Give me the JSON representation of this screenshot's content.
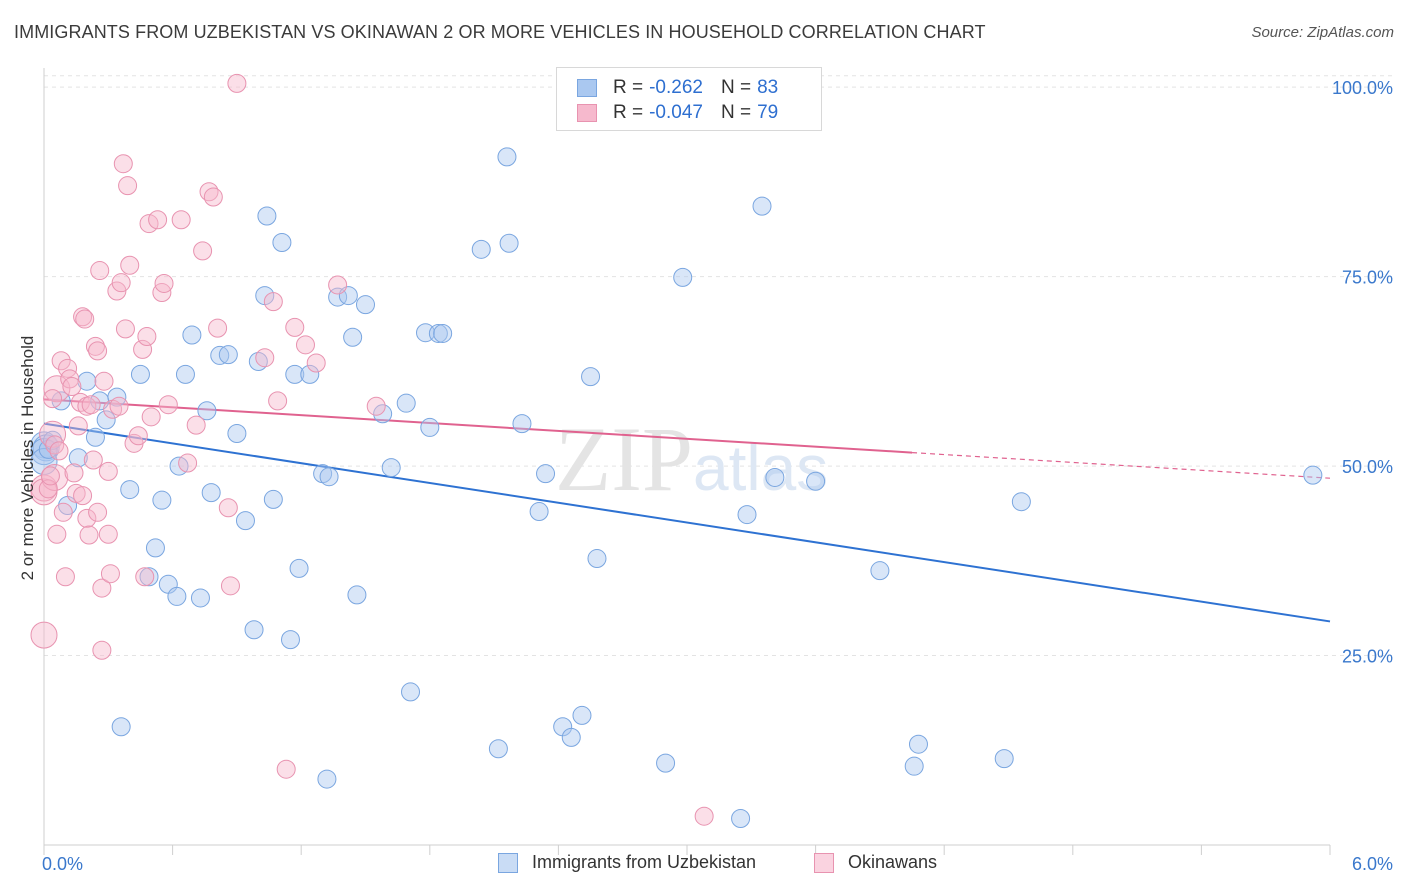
{
  "title": "IMMIGRANTS FROM UZBEKISTAN VS OKINAWAN 2 OR MORE VEHICLES IN HOUSEHOLD CORRELATION CHART",
  "source": "Source: ZipAtlas.com",
  "watermark": "ZIPatlas",
  "colors": {
    "blue_fill": "#aac8f0",
    "blue_stroke": "#7aa6e0",
    "blue_line": "#2e72d2",
    "pink_fill": "#f6b9cd",
    "pink_stroke": "#e893b0",
    "pink_line": "#e0628f",
    "axis_text": "#3a78cc"
  },
  "legend": {
    "r_label": "R =",
    "n_label": "N =",
    "rows": [
      {
        "r": "-0.262",
        "n": "83"
      },
      {
        "r": "-0.047",
        "n": "79"
      }
    ]
  },
  "chart_data": {
    "type": "scatter",
    "title": "IMMIGRANTS FROM UZBEKISTAN VS OKINAWAN 2 OR MORE VEHICLES IN HOUSEHOLD CORRELATION CHART",
    "xlabel": "",
    "ylabel": "2 or more Vehicles in Household",
    "xlim": [
      0,
      6
    ],
    "ylim": [
      0,
      102
    ],
    "x_tick_labels": [
      "0.0%",
      "6.0%"
    ],
    "y_ticks": [
      25,
      50,
      75,
      100
    ],
    "y_tick_labels": [
      "25.0%",
      "50.0%",
      "75.0%",
      "100.0%"
    ],
    "series": [
      {
        "name": "Immigrants from Uzbekistan",
        "color": "blue",
        "trend": {
          "x0": 0.0,
          "y0": 55.6,
          "x1": 6.0,
          "y1": 29.5,
          "dashed_from": null
        },
        "points": [
          [
            0.02,
            52.2
          ],
          [
            0.04,
            53.4
          ],
          [
            0.08,
            58.6
          ],
          [
            0.11,
            44.8
          ],
          [
            0.16,
            51.1
          ],
          [
            0.2,
            61.2
          ],
          [
            0.24,
            53.8
          ],
          [
            0.26,
            58.6
          ],
          [
            0.29,
            56.1
          ],
          [
            0.34,
            59.1
          ],
          [
            0.36,
            15.6
          ],
          [
            0.4,
            46.9
          ],
          [
            0.45,
            62.1
          ],
          [
            0.49,
            35.4
          ],
          [
            0.52,
            39.2
          ],
          [
            0.55,
            45.5
          ],
          [
            0.58,
            34.4
          ],
          [
            0.62,
            32.8
          ],
          [
            0.63,
            50.0
          ],
          [
            0.66,
            62.1
          ],
          [
            0.69,
            67.3
          ],
          [
            0.73,
            32.6
          ],
          [
            0.76,
            57.3
          ],
          [
            0.78,
            46.5
          ],
          [
            0.82,
            64.6
          ],
          [
            0.86,
            64.7
          ],
          [
            0.9,
            54.3
          ],
          [
            0.94,
            42.8
          ],
          [
            0.98,
            28.4
          ],
          [
            1.0,
            63.8
          ],
          [
            1.03,
            72.5
          ],
          [
            1.04,
            83.0
          ],
          [
            1.07,
            45.6
          ],
          [
            1.11,
            79.5
          ],
          [
            1.15,
            27.1
          ],
          [
            1.17,
            62.1
          ],
          [
            1.19,
            36.5
          ],
          [
            1.24,
            62.1
          ],
          [
            1.3,
            49.0
          ],
          [
            1.33,
            48.6
          ],
          [
            1.32,
            8.7
          ],
          [
            1.37,
            72.3
          ],
          [
            1.42,
            72.5
          ],
          [
            1.44,
            67.0
          ],
          [
            1.46,
            33.0
          ],
          [
            1.5,
            71.3
          ],
          [
            1.58,
            56.9
          ],
          [
            1.62,
            49.8
          ],
          [
            1.69,
            58.3
          ],
          [
            1.71,
            20.2
          ],
          [
            1.78,
            67.6
          ],
          [
            1.8,
            55.1
          ],
          [
            1.84,
            67.5
          ],
          [
            1.86,
            67.5
          ],
          [
            2.04,
            78.6
          ],
          [
            2.12,
            12.7
          ],
          [
            2.16,
            90.8
          ],
          [
            2.17,
            79.4
          ],
          [
            2.23,
            55.6
          ],
          [
            2.31,
            44.0
          ],
          [
            2.34,
            49.0
          ],
          [
            2.42,
            15.6
          ],
          [
            2.46,
            14.2
          ],
          [
            2.51,
            17.1
          ],
          [
            2.55,
            61.8
          ],
          [
            2.58,
            37.8
          ],
          [
            2.9,
            10.8
          ],
          [
            2.98,
            74.9
          ],
          [
            3.25,
            3.5
          ],
          [
            3.28,
            43.6
          ],
          [
            3.35,
            84.3
          ],
          [
            3.41,
            48.5
          ],
          [
            3.6,
            48.0
          ],
          [
            3.9,
            36.2
          ],
          [
            4.06,
            10.4
          ],
          [
            4.08,
            13.3
          ],
          [
            4.48,
            11.4
          ],
          [
            4.56,
            45.3
          ],
          [
            5.92,
            48.8
          ]
        ],
        "big_points": [
          [
            0.0,
            52.8
          ],
          [
            0.01,
            52.4
          ],
          [
            0.0,
            51.9
          ],
          [
            0.0,
            50.6
          ]
        ]
      },
      {
        "name": "Okinawans",
        "color": "pink",
        "trend": {
          "x0": 0.0,
          "y0": 58.8,
          "x1": 6.0,
          "y1": 48.4,
          "dashed_from": 4.05
        },
        "points": [
          [
            0.02,
            47.0
          ],
          [
            0.04,
            58.9
          ],
          [
            0.05,
            52.8
          ],
          [
            0.07,
            52.0
          ],
          [
            0.08,
            63.9
          ],
          [
            0.09,
            43.9
          ],
          [
            0.1,
            35.4
          ],
          [
            0.11,
            62.9
          ],
          [
            0.12,
            61.5
          ],
          [
            0.13,
            60.5
          ],
          [
            0.14,
            49.1
          ],
          [
            0.15,
            46.4
          ],
          [
            0.16,
            55.3
          ],
          [
            0.17,
            58.4
          ],
          [
            0.18,
            46.1
          ],
          [
            0.18,
            69.7
          ],
          [
            0.19,
            69.4
          ],
          [
            0.2,
            43.1
          ],
          [
            0.2,
            57.9
          ],
          [
            0.21,
            40.9
          ],
          [
            0.22,
            58.1
          ],
          [
            0.23,
            50.8
          ],
          [
            0.24,
            65.8
          ],
          [
            0.25,
            43.9
          ],
          [
            0.25,
            65.2
          ],
          [
            0.26,
            75.8
          ],
          [
            0.27,
            33.9
          ],
          [
            0.27,
            25.7
          ],
          [
            0.28,
            61.2
          ],
          [
            0.3,
            49.3
          ],
          [
            0.3,
            41.0
          ],
          [
            0.31,
            35.8
          ],
          [
            0.32,
            57.5
          ],
          [
            0.34,
            73.1
          ],
          [
            0.35,
            57.9
          ],
          [
            0.36,
            74.2
          ],
          [
            0.37,
            89.9
          ],
          [
            0.38,
            68.1
          ],
          [
            0.39,
            87.0
          ],
          [
            0.4,
            76.5
          ],
          [
            0.42,
            53.0
          ],
          [
            0.44,
            54.0
          ],
          [
            0.46,
            65.4
          ],
          [
            0.47,
            35.4
          ],
          [
            0.48,
            67.1
          ],
          [
            0.49,
            82.0
          ],
          [
            0.5,
            56.5
          ],
          [
            0.53,
            82.5
          ],
          [
            0.55,
            72.9
          ],
          [
            0.56,
            74.1
          ],
          [
            0.58,
            58.1
          ],
          [
            0.64,
            82.5
          ],
          [
            0.67,
            50.4
          ],
          [
            0.71,
            55.4
          ],
          [
            0.74,
            78.4
          ],
          [
            0.77,
            86.2
          ],
          [
            0.79,
            85.5
          ],
          [
            0.81,
            68.2
          ],
          [
            0.86,
            44.5
          ],
          [
            0.87,
            34.2
          ],
          [
            0.9,
            100.5
          ],
          [
            1.03,
            64.3
          ],
          [
            1.07,
            71.7
          ],
          [
            1.09,
            58.6
          ],
          [
            1.13,
            10.0
          ],
          [
            1.17,
            68.3
          ],
          [
            1.22,
            66.0
          ],
          [
            1.27,
            63.6
          ],
          [
            1.37,
            73.9
          ],
          [
            1.55,
            57.9
          ],
          [
            3.08,
            3.8
          ],
          [
            0.03,
            48.7
          ],
          [
            0.06,
            41.0
          ]
        ],
        "big_points": [
          [
            0.0,
            47.1
          ],
          [
            0.0,
            46.6
          ],
          [
            0.0,
            27.7
          ],
          [
            0.05,
            48.5
          ],
          [
            0.06,
            60.2
          ],
          [
            0.04,
            54.2
          ]
        ]
      }
    ]
  },
  "bottom_legend": [
    "Immigrants from Uzbekistan",
    "Okinawans"
  ]
}
